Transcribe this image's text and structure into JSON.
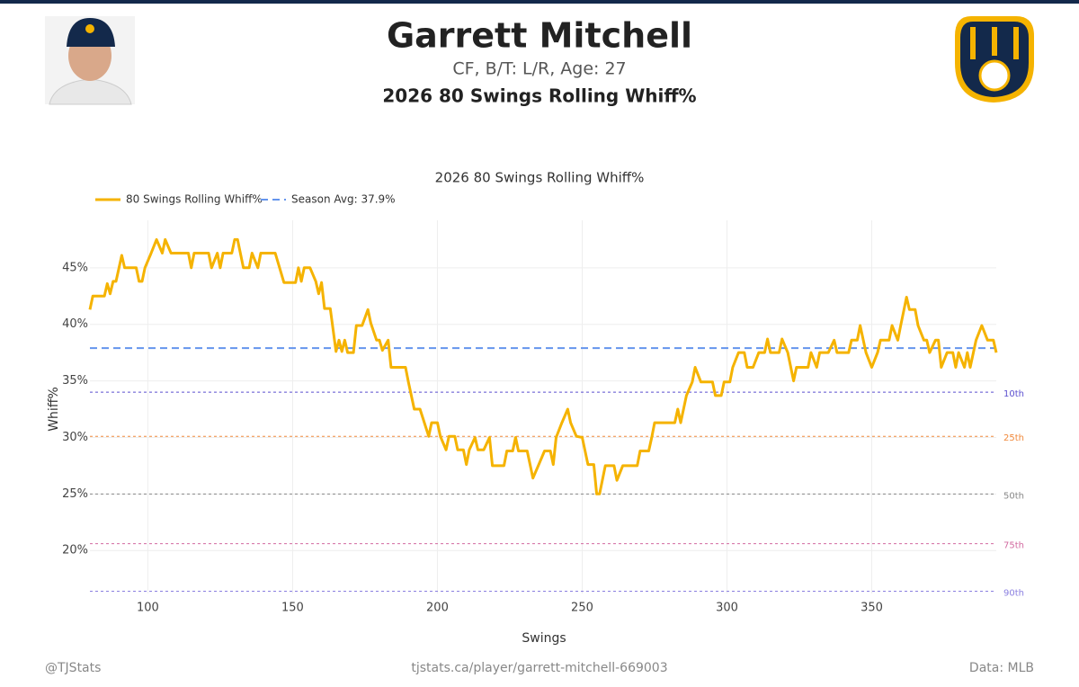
{
  "header": {
    "player_name": "Garrett Mitchell",
    "player_info": "CF, B/T: L/R, Age: 27",
    "subtitle": "2026 80 Swings Rolling Whiff%"
  },
  "chart_data": {
    "type": "line",
    "title": "2026 80 Swings Rolling Whiff%",
    "x_label": "Swings",
    "y_label": "Whiff%",
    "xlim": [
      80,
      393
    ],
    "ylim": [
      16.2,
      49.2
    ],
    "xticks": [
      100,
      150,
      200,
      250,
      300,
      350
    ],
    "yticks": [
      {
        "value": 20,
        "label": "20%"
      },
      {
        "value": 25,
        "label": "25%"
      },
      {
        "value": 30,
        "label": "30%"
      },
      {
        "value": 35,
        "label": "35%"
      },
      {
        "value": 40,
        "label": "40%"
      },
      {
        "value": 45,
        "label": "45%"
      }
    ],
    "grid": true,
    "legend": "top-left",
    "x": [
      80,
      81,
      85,
      86,
      87,
      88,
      89,
      91,
      92,
      96,
      97,
      98,
      99,
      101,
      103,
      105,
      106,
      108,
      114,
      115,
      116,
      121,
      122,
      124,
      125,
      126,
      129,
      130,
      131,
      133,
      135,
      136,
      138,
      139,
      144,
      147,
      151,
      152,
      153,
      154,
      156,
      158,
      159,
      160,
      161,
      163,
      165,
      166,
      167,
      168,
      169,
      171,
      172,
      174,
      176,
      177,
      179,
      180,
      181,
      183,
      184,
      189,
      190,
      192,
      194,
      197,
      198,
      200,
      201,
      203,
      204,
      206,
      207,
      209,
      210,
      211,
      213,
      214,
      216,
      218,
      219,
      223,
      224,
      226,
      227,
      228,
      231,
      232,
      233,
      235,
      237,
      239,
      240,
      241,
      243,
      245,
      246,
      248,
      250,
      252,
      254,
      255,
      256,
      258,
      261,
      262,
      264,
      269,
      270,
      273,
      274,
      275,
      282,
      283,
      284,
      286,
      288,
      289,
      291,
      295,
      296,
      298,
      299,
      301,
      302,
      304,
      306,
      307,
      309,
      311,
      313,
      314,
      315,
      318,
      319,
      321,
      323,
      324,
      328,
      329,
      331,
      332,
      335,
      337,
      338,
      342,
      343,
      345,
      346,
      348,
      350,
      352,
      353,
      356,
      357,
      359,
      360,
      362,
      363,
      365,
      366,
      368,
      369,
      370,
      372,
      373,
      374,
      376,
      378,
      379,
      380,
      382,
      383,
      384,
      386,
      388,
      390,
      392,
      393
    ],
    "series": [
      {
        "name": "80 Swings Rolling Whiff%",
        "color": "#f5b300",
        "values": [
          41.3,
          42.5,
          42.5,
          43.6,
          42.7,
          43.8,
          43.8,
          46.1,
          45.0,
          45.0,
          43.8,
          43.8,
          45.0,
          46.2,
          47.5,
          46.3,
          47.5,
          46.3,
          46.3,
          45.0,
          46.3,
          46.3,
          45.0,
          46.3,
          45.0,
          46.3,
          46.3,
          47.5,
          47.5,
          45.0,
          45.0,
          46.3,
          45.0,
          46.3,
          46.3,
          43.7,
          43.7,
          45.0,
          43.8,
          45.0,
          45.0,
          43.8,
          42.7,
          43.7,
          41.4,
          41.4,
          37.6,
          38.6,
          37.6,
          38.6,
          37.5,
          37.5,
          39.9,
          39.9,
          41.3,
          40.1,
          38.6,
          38.6,
          37.7,
          38.6,
          36.2,
          36.2,
          34.9,
          32.5,
          32.5,
          30.1,
          31.3,
          31.3,
          30.1,
          28.9,
          30.1,
          30.1,
          28.9,
          28.9,
          27.6,
          28.9,
          30.0,
          28.9,
          28.9,
          30.0,
          27.5,
          27.5,
          28.8,
          28.8,
          30.0,
          28.8,
          28.8,
          27.6,
          26.4,
          27.6,
          28.8,
          28.8,
          27.6,
          30.0,
          31.3,
          32.5,
          31.3,
          30.1,
          30.0,
          27.6,
          27.6,
          25.0,
          25.0,
          27.5,
          27.5,
          26.2,
          27.5,
          27.5,
          28.8,
          28.8,
          30.0,
          31.3,
          31.3,
          32.5,
          31.3,
          33.7,
          34.9,
          36.2,
          34.9,
          34.9,
          33.7,
          33.7,
          34.9,
          34.9,
          36.2,
          37.5,
          37.5,
          36.2,
          36.2,
          37.5,
          37.5,
          38.7,
          37.5,
          37.5,
          38.7,
          37.5,
          35.0,
          36.2,
          36.2,
          37.5,
          36.2,
          37.5,
          37.5,
          38.6,
          37.5,
          37.5,
          38.6,
          38.6,
          39.9,
          37.5,
          36.2,
          37.5,
          38.6,
          38.6,
          39.9,
          38.6,
          39.9,
          42.4,
          41.3,
          41.3,
          39.9,
          38.6,
          38.6,
          37.5,
          38.6,
          38.6,
          36.2,
          37.5,
          37.5,
          36.2,
          37.5,
          36.2,
          37.5,
          36.2,
          38.6,
          39.9,
          38.6,
          38.6,
          37.5
        ]
      }
    ],
    "reference_lines": [
      {
        "name": "Season Avg: 37.9%",
        "value": 37.9,
        "color": "#6495ed"
      }
    ],
    "percentiles": [
      {
        "label": "10th",
        "value": 34.0,
        "color": "#5b4fcf"
      },
      {
        "label": "25th",
        "value": 30.1,
        "color": "#f0883a"
      },
      {
        "label": "50th",
        "value": 25.0,
        "color": "#888888"
      },
      {
        "label": "75th",
        "value": 20.6,
        "color": "#d26aa0"
      },
      {
        "label": "90th",
        "value": 16.4,
        "color": "#8a7fe0"
      }
    ]
  },
  "footer": {
    "left": "@TJStats",
    "center": "tjstats.ca/player/garrett-mitchell-669003",
    "right": "Data: MLB"
  }
}
